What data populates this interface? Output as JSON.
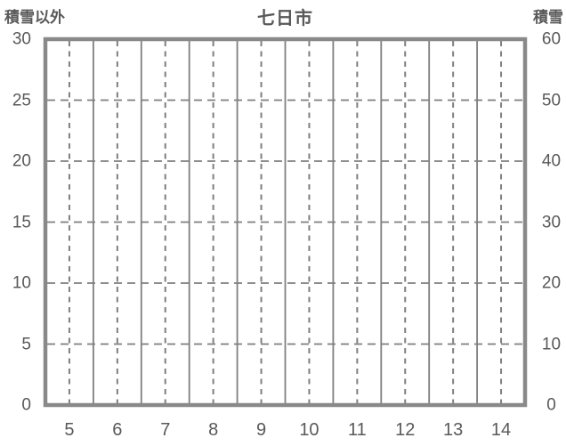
{
  "title": "七日市",
  "colors": {
    "background": "#ffffff",
    "border": "#898989",
    "grid": "#7f7f7f",
    "text": "#595959"
  },
  "chart_data": {
    "type": "line",
    "title": "七日市",
    "left_axis": {
      "label": "積雪以外",
      "ticks": [
        30,
        25,
        20,
        15,
        10,
        5,
        0
      ],
      "range": [
        0,
        30
      ]
    },
    "right_axis": {
      "label": "積雪",
      "ticks": [
        60,
        50,
        40,
        30,
        20,
        10,
        0
      ],
      "range": [
        0,
        60
      ]
    },
    "x_axis": {
      "ticks": [
        5,
        6,
        7,
        8,
        9,
        10,
        11,
        12,
        13,
        14
      ]
    },
    "series": [],
    "grid": true,
    "legend": false
  }
}
